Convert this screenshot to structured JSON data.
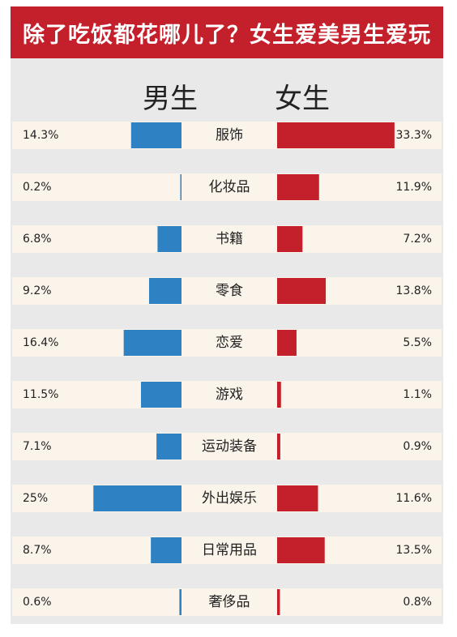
{
  "header": {
    "title": "除了吃饭都花哪儿了？女生爱美男生爱玩"
  },
  "legend": {
    "male": "男生",
    "female": "女生"
  },
  "colors": {
    "banner": "#c4202b",
    "male_bar": "#2e82c4",
    "female_bar": "#c4202b",
    "row_bg": "#fbf4ea",
    "background": "#e9e9e9"
  },
  "chart_data": {
    "type": "bar",
    "title": "除了吃饭都花哪儿了？女生爱美男生爱玩",
    "orientation": "horizontal-butterfly",
    "categories": [
      "服饰",
      "化妆品",
      "书籍",
      "零食",
      "恋爱",
      "游戏",
      "运动装备",
      "外出娱乐",
      "日常用品",
      "奢侈品"
    ],
    "series": [
      {
        "name": "男生",
        "values": [
          14.3,
          0.2,
          6.8,
          9.2,
          16.4,
          11.5,
          7.1,
          25,
          8.7,
          0.6
        ],
        "labels": [
          "14.3%",
          "0.2%",
          "6.8%",
          "9.2%",
          "16.4%",
          "11.5%",
          "7.1%",
          "25%",
          "8.7%",
          "0.6%"
        ]
      },
      {
        "name": "女生",
        "values": [
          33.3,
          11.9,
          7.2,
          13.8,
          5.5,
          1.1,
          0.9,
          11.6,
          13.5,
          0.8
        ],
        "labels": [
          "33.3%",
          "11.9%",
          "7.2%",
          "13.8%",
          "5.5%",
          "1.1%",
          "0.9%",
          "11.6%",
          "13.5%",
          "0.8%"
        ]
      }
    ],
    "unit": "%",
    "grid": false
  }
}
